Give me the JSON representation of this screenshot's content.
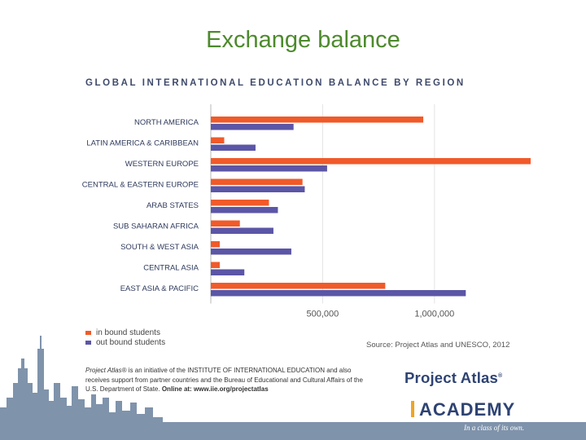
{
  "slide": {
    "title": "Exchange balance"
  },
  "chart_data": {
    "type": "bar",
    "orientation": "horizontal",
    "title": "GLOBAL INTERNATIONAL EDUCATION BALANCE BY REGION",
    "categories": [
      "NORTH AMERICA",
      "LATIN AMERICA & CARIBBEAN",
      "WESTERN EUROPE",
      "CENTRAL & EASTERN EUROPE",
      "ARAB STATES",
      "SUB SAHARAN AFRICA",
      "SOUTH & WEST ASIA",
      "CENTRAL ASIA",
      "EAST ASIA & PACIFIC"
    ],
    "series": [
      {
        "name": "in bound students",
        "color": "#f15a29",
        "values": [
          950000,
          60000,
          1430000,
          410000,
          260000,
          130000,
          40000,
          40000,
          780000
        ]
      },
      {
        "name": "out bound students",
        "color": "#5b56a6",
        "values": [
          370000,
          200000,
          520000,
          420000,
          300000,
          280000,
          360000,
          150000,
          1140000
        ]
      }
    ],
    "xlim": [
      0,
      1430000
    ],
    "xticks": [
      500000,
      1000000
    ],
    "xtick_labels": [
      "500,000",
      "1,000,000"
    ],
    "legend_position": "bottom-left",
    "source": "Source: Project Atlas and UNESCO, 2012"
  },
  "footer": {
    "note_brand": "Project Atlas®",
    "note_text": " is an initiative of the INSTITUTE OF INTERNATIONAL EDUCATION and also receives support from partner countries and the Bureau of Educational and Cultural Affairs of the U.S. Department of State.",
    "note_online": " Online at: www.iie.org/projectatlas",
    "logo_text": "Project Atlas",
    "logo_mark": "®",
    "academy_text": "ACADEMY",
    "tagline": "In a class of its own."
  }
}
